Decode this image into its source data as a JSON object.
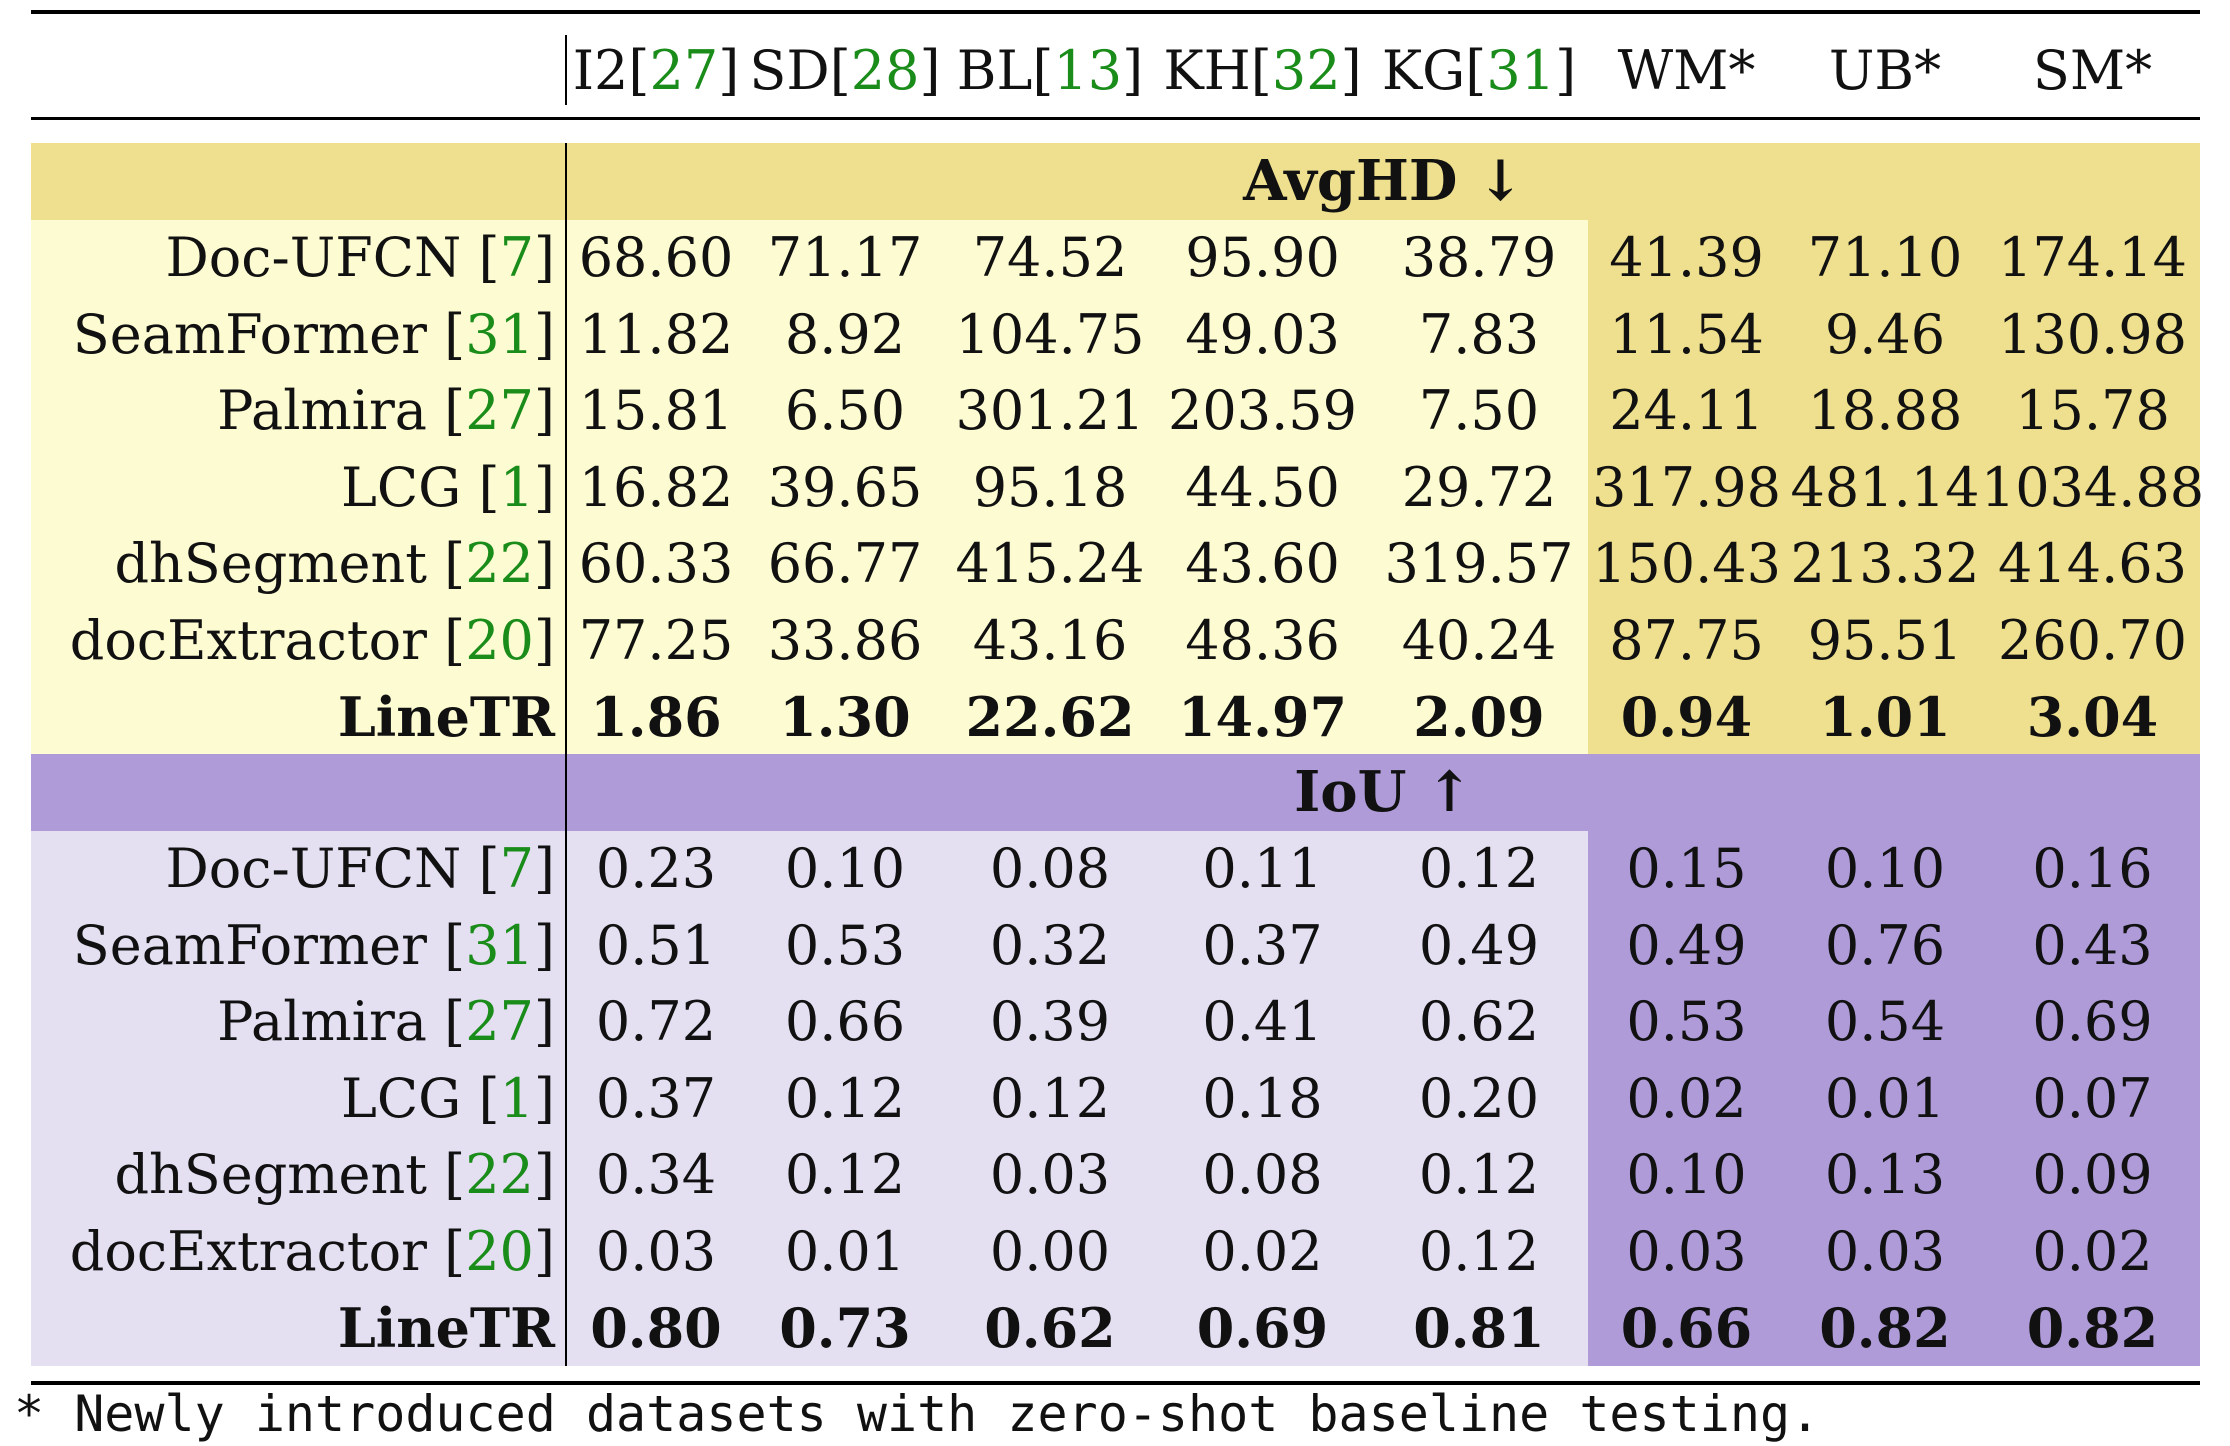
{
  "columns": [
    {
      "name": "I2",
      "cite": "27"
    },
    {
      "name": "SD",
      "cite": "28"
    },
    {
      "name": "BL",
      "cite": "13"
    },
    {
      "name": "KH",
      "cite": "32"
    },
    {
      "name": "KG",
      "cite": "31"
    },
    {
      "name": "WM*",
      "cite": ""
    },
    {
      "name": "UB*",
      "cite": ""
    },
    {
      "name": "SM*",
      "cite": ""
    }
  ],
  "sections": [
    {
      "title": "AvgHD ↓",
      "color_header": "#eee08e",
      "color_light": "#fdfbd2",
      "color_dark": "#eee08e",
      "rows": [
        {
          "method": "Doc-UFCN",
          "cite": "7",
          "values": [
            "68.60",
            "71.17",
            "74.52",
            "95.90",
            "38.79",
            "41.39",
            "71.10",
            "174.14"
          ],
          "bold": false
        },
        {
          "method": "SeamFormer",
          "cite": "31",
          "values": [
            "11.82",
            "8.92",
            "104.75",
            "49.03",
            "7.83",
            "11.54",
            "9.46",
            "130.98"
          ],
          "bold": false
        },
        {
          "method": "Palmira",
          "cite": "27",
          "values": [
            "15.81",
            "6.50",
            "301.21",
            "203.59",
            "7.50",
            "24.11",
            "18.88",
            "15.78"
          ],
          "bold": false
        },
        {
          "method": "LCG",
          "cite": "1",
          "values": [
            "16.82",
            "39.65",
            "95.18",
            "44.50",
            "29.72",
            "317.98",
            "481.14",
            "1034.88"
          ],
          "bold": false
        },
        {
          "method": "dhSegment",
          "cite": "22",
          "values": [
            "60.33",
            "66.77",
            "415.24",
            "43.60",
            "319.57",
            "150.43",
            "213.32",
            "414.63"
          ],
          "bold": false
        },
        {
          "method": "docExtractor",
          "cite": "20",
          "values": [
            "77.25",
            "33.86",
            "43.16",
            "48.36",
            "40.24",
            "87.75",
            "95.51",
            "260.70"
          ],
          "bold": false
        },
        {
          "method": "LineTR",
          "cite": "",
          "values": [
            "1.86",
            "1.30",
            "22.62",
            "14.97",
            "2.09",
            "0.94",
            "1.01",
            "3.04"
          ],
          "bold": true
        }
      ]
    },
    {
      "title": "IoU ↑",
      "color_header": "#ae9bd8",
      "color_light": "#e4e0f2",
      "color_dark": "#ae9bd8",
      "rows": [
        {
          "method": "Doc-UFCN",
          "cite": "7",
          "values": [
            "0.23",
            "0.10",
            "0.08",
            "0.11",
            "0.12",
            "0.15",
            "0.10",
            "0.16"
          ],
          "bold": false
        },
        {
          "method": "SeamFormer",
          "cite": "31",
          "values": [
            "0.51",
            "0.53",
            "0.32",
            "0.37",
            "0.49",
            "0.49",
            "0.76",
            "0.43"
          ],
          "bold": false
        },
        {
          "method": "Palmira",
          "cite": "27",
          "values": [
            "0.72",
            "0.66",
            "0.39",
            "0.41",
            "0.62",
            "0.53",
            "0.54",
            "0.69"
          ],
          "bold": false
        },
        {
          "method": "LCG",
          "cite": "1",
          "values": [
            "0.37",
            "0.12",
            "0.12",
            "0.18",
            "0.20",
            "0.02",
            "0.01",
            "0.07"
          ],
          "bold": false
        },
        {
          "method": "dhSegment",
          "cite": "22",
          "values": [
            "0.34",
            "0.12",
            "0.03",
            "0.08",
            "0.12",
            "0.10",
            "0.13",
            "0.09"
          ],
          "bold": false
        },
        {
          "method": "docExtractor",
          "cite": "20",
          "values": [
            "0.03",
            "0.01",
            "0.00",
            "0.02",
            "0.12",
            "0.03",
            "0.03",
            "0.02"
          ],
          "bold": false
        },
        {
          "method": "LineTR",
          "cite": "",
          "values": [
            "0.80",
            "0.73",
            "0.62",
            "0.69",
            "0.81",
            "0.66",
            "0.82",
            "0.82"
          ],
          "bold": true
        }
      ]
    }
  ],
  "footnote": "* Newly introduced datasets with zero-shot baseline testing."
}
